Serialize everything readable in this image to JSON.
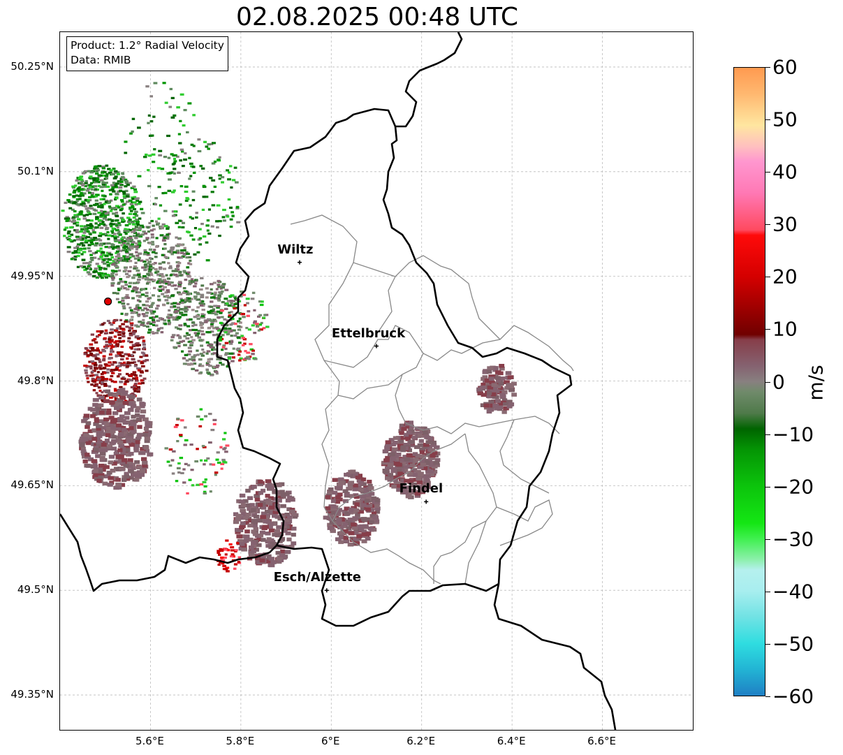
{
  "title": "02.08.2025 00:48 UTC",
  "info_box": {
    "line1": "Product: 1.2° Radial Velocity",
    "line2": "Data: RMIB"
  },
  "latitude_ticks": [
    {
      "value": 50.25,
      "label": "50.25°N"
    },
    {
      "value": 50.1,
      "label": "50.1°N"
    },
    {
      "value": 49.95,
      "label": "49.95°N"
    },
    {
      "value": 49.8,
      "label": "49.8°N"
    },
    {
      "value": 49.65,
      "label": "49.65°N"
    },
    {
      "value": 49.5,
      "label": "49.5°N"
    },
    {
      "value": 49.35,
      "label": "49.35°N"
    }
  ],
  "longitude_ticks": [
    {
      "value": 5.6,
      "label": "5.6°E"
    },
    {
      "value": 5.8,
      "label": "5.8°E"
    },
    {
      "value": 6.0,
      "label": "6°E"
    },
    {
      "value": 6.2,
      "label": "6.2°E"
    },
    {
      "value": 6.4,
      "label": "6.4°E"
    },
    {
      "value": 6.6,
      "label": "6.6°E"
    }
  ],
  "map_extent": {
    "lon_min": 5.4,
    "lon_max": 6.8,
    "lat_min": 49.3,
    "lat_max": 50.3
  },
  "cities": [
    {
      "name": "Wiltz",
      "lon": 5.93,
      "lat": 49.97
    },
    {
      "name": "Ettelbruck",
      "lon": 6.1,
      "lat": 49.85
    },
    {
      "name": "Findel",
      "lon": 6.21,
      "lat": 49.627
    },
    {
      "name": "Esch/Alzette",
      "lon": 5.99,
      "lat": 49.5
    }
  ],
  "radar_site": {
    "lon": 5.506,
    "lat": 49.914
  },
  "colorbar": {
    "unit": "m/s",
    "min": -60,
    "max": 60,
    "ticks": [
      {
        "value": 60,
        "label": "60"
      },
      {
        "value": 50,
        "label": "50"
      },
      {
        "value": 40,
        "label": "40"
      },
      {
        "value": 30,
        "label": "30"
      },
      {
        "value": 20,
        "label": "20"
      },
      {
        "value": 10,
        "label": "10"
      },
      {
        "value": 0,
        "label": "0"
      },
      {
        "value": -10,
        "label": "−10"
      },
      {
        "value": -20,
        "label": "−20"
      },
      {
        "value": -30,
        "label": "−30"
      },
      {
        "value": -40,
        "label": "−40"
      },
      {
        "value": -50,
        "label": "−50"
      },
      {
        "value": -60,
        "label": "−60"
      }
    ],
    "stops": [
      {
        "value": -60,
        "color": "#1f7fc4"
      },
      {
        "value": -55,
        "color": "#22b4d4"
      },
      {
        "value": -50,
        "color": "#2fdde0"
      },
      {
        "value": -45,
        "color": "#70e2e4"
      },
      {
        "value": -40,
        "color": "#a8eeef"
      },
      {
        "value": -36,
        "color": "#b5f0ee"
      },
      {
        "value": -34,
        "color": "#8cf0ab"
      },
      {
        "value": -30,
        "color": "#3ff04f"
      },
      {
        "value": -27,
        "color": "#14e614"
      },
      {
        "value": -20,
        "color": "#0cc40c"
      },
      {
        "value": -13,
        "color": "#049504"
      },
      {
        "value": -9,
        "color": "#006400"
      },
      {
        "value": -6,
        "color": "#4f7a4a"
      },
      {
        "value": -2,
        "color": "#6f8a6a"
      },
      {
        "value": 0,
        "color": "#888080"
      },
      {
        "value": 3,
        "color": "#856270"
      },
      {
        "value": 8,
        "color": "#873e4a"
      },
      {
        "value": 9,
        "color": "#700000"
      },
      {
        "value": 20,
        "color": "#d40000"
      },
      {
        "value": 28,
        "color": "#ff0a0a"
      },
      {
        "value": 29,
        "color": "#ff4a60"
      },
      {
        "value": 36,
        "color": "#ff78b4"
      },
      {
        "value": 42,
        "color": "#ff96cf"
      },
      {
        "value": 45,
        "color": "#ffc0bf"
      },
      {
        "value": 49,
        "color": "#ffe6a0"
      },
      {
        "value": 55,
        "color": "#ffb870"
      },
      {
        "value": 60,
        "color": "#ff9a50"
      }
    ]
  },
  "radar_clusters": [
    {
      "lon": 5.49,
      "lat": 50.03,
      "r": 0.09,
      "n": 700,
      "kind": "green"
    },
    {
      "lon": 5.6,
      "lat": 49.95,
      "r": 0.09,
      "n": 500,
      "kind": "grey"
    },
    {
      "lon": 5.72,
      "lat": 49.88,
      "r": 0.08,
      "n": 380,
      "kind": "grey"
    },
    {
      "lon": 5.52,
      "lat": 49.83,
      "r": 0.07,
      "n": 420,
      "kind": "darkred"
    },
    {
      "lon": 5.52,
      "lat": 49.72,
      "r": 0.08,
      "n": 380,
      "kind": "mauve"
    },
    {
      "lon": 5.7,
      "lat": 50.06,
      "r": 0.1,
      "n": 140,
      "kind": "green"
    },
    {
      "lon": 5.62,
      "lat": 50.15,
      "r": 0.09,
      "n": 60,
      "kind": "green"
    },
    {
      "lon": 5.8,
      "lat": 49.88,
      "r": 0.06,
      "n": 100,
      "kind": "mixed"
    },
    {
      "lon": 5.7,
      "lat": 49.7,
      "r": 0.07,
      "n": 80,
      "kind": "mixed"
    },
    {
      "lon": 6.17,
      "lat": 49.69,
      "r": 0.06,
      "n": 320,
      "kind": "mauve"
    },
    {
      "lon": 6.04,
      "lat": 49.62,
      "r": 0.06,
      "n": 260,
      "kind": "mauve"
    },
    {
      "lon": 5.85,
      "lat": 49.6,
      "r": 0.07,
      "n": 280,
      "kind": "mauve"
    },
    {
      "lon": 6.36,
      "lat": 49.79,
      "r": 0.04,
      "n": 120,
      "kind": "mauve"
    },
    {
      "lon": 5.77,
      "lat": 49.55,
      "r": 0.03,
      "n": 40,
      "kind": "red"
    }
  ]
}
